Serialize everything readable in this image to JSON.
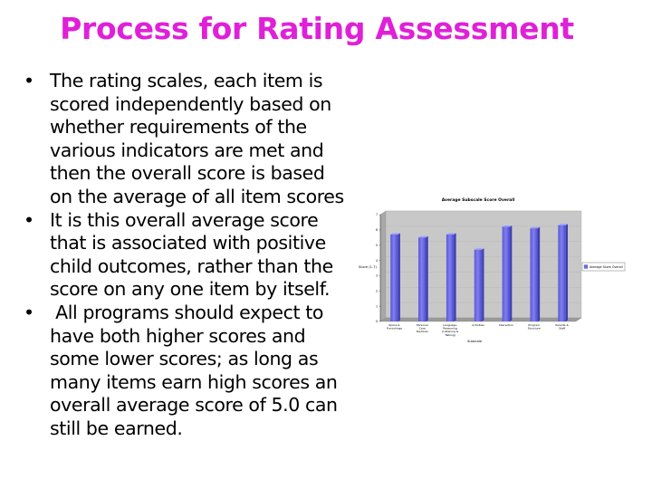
{
  "slide": {
    "title": "Process for Rating Assessment",
    "bullets": [
      {
        "marker": "•",
        "lines": [
          "The rating scales, each item is",
          "scored independently based on",
          "whether requirements of the",
          "various indicators are met and",
          "then the overall score is  based",
          "on the average of all item scores"
        ]
      },
      {
        "marker": "•",
        "lines": [
          "It is this overall average score",
          "that is associated with positive",
          "child outcomes, rather than the",
          "score on any one item by itself."
        ]
      },
      {
        "marker": "•",
        "lines": [
          " All programs should expect to",
          "have both higher scores and",
          "some lower scores; as long as",
          "many items earn high scores an",
          "overall average score of 5.0 can",
          "still be earned."
        ]
      }
    ]
  },
  "chart_data": {
    "type": "bar",
    "title": "Average Subscale Score Overall",
    "xlabel": "Subscale",
    "ylabel": "Score (1-7)",
    "categories": [
      [
        "Space &",
        "Furnishings"
      ],
      [
        "Personal",
        "Care",
        "Routines"
      ],
      [
        "Language-",
        "Reasoning",
        "(Listening &",
        "Talking)"
      ],
      [
        "Activities"
      ],
      [
        "Interaction"
      ],
      [
        "Program",
        "Structure"
      ],
      [
        "Parents &",
        "Staff"
      ]
    ],
    "series": [
      {
        "name": "Average Score Overall",
        "values": [
          5.7,
          5.5,
          5.7,
          4.7,
          6.2,
          6.1,
          6.3
        ]
      }
    ],
    "ylim": [
      0,
      7
    ],
    "yticks": [
      "0",
      "1",
      "2",
      "3",
      "4",
      "5",
      "6",
      "7"
    ],
    "legend": "right",
    "bar_color": "#6f6fe6",
    "plot_bg": "#c8c8c8"
  }
}
